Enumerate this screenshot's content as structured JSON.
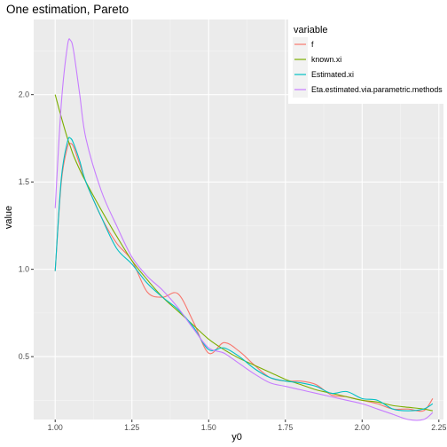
{
  "chart_data": {
    "type": "line",
    "title": "One estimation, Pareto",
    "xlabel": "y0",
    "ylabel": "value",
    "xlim": [
      0.93,
      2.265
    ],
    "ylim": [
      0.14,
      2.43
    ],
    "x_ticks": [
      1.0,
      1.25,
      1.5,
      1.75,
      2.0,
      2.25
    ],
    "x_tick_labels": [
      "1.00",
      "1.25",
      "1.50",
      "1.75",
      "2.00",
      "2.25"
    ],
    "y_ticks": [
      0.5,
      1.0,
      1.5,
      2.0
    ],
    "y_tick_labels": [
      "0.5",
      "1.0",
      "1.5",
      "2.0"
    ],
    "grid": true,
    "legend": {
      "title": "variable",
      "position": "right"
    },
    "x": [
      1.0,
      1.02,
      1.04,
      1.05,
      1.06,
      1.08,
      1.1,
      1.15,
      1.2,
      1.25,
      1.3,
      1.35,
      1.4,
      1.45,
      1.5,
      1.55,
      1.6,
      1.65,
      1.7,
      1.75,
      1.8,
      1.85,
      1.9,
      1.95,
      2.0,
      2.05,
      2.1,
      2.15,
      2.2,
      2.23
    ],
    "series": [
      {
        "name": "f",
        "color": "#F8766D",
        "values": [
          0.99,
          1.5,
          1.7,
          1.72,
          1.7,
          1.6,
          1.5,
          1.3,
          1.15,
          1.05,
          0.87,
          0.84,
          0.86,
          0.7,
          0.52,
          0.58,
          0.53,
          0.45,
          0.38,
          0.36,
          0.36,
          0.34,
          0.28,
          0.27,
          0.25,
          0.23,
          0.2,
          0.2,
          0.19,
          0.26
        ]
      },
      {
        "name": "known.xi",
        "color": "#7CAE00",
        "values": [
          2.0,
          1.87,
          1.75,
          1.7,
          1.65,
          1.57,
          1.5,
          1.34,
          1.19,
          1.05,
          0.94,
          0.84,
          0.76,
          0.68,
          0.6,
          0.54,
          0.49,
          0.45,
          0.41,
          0.37,
          0.34,
          0.31,
          0.29,
          0.27,
          0.25,
          0.24,
          0.22,
          0.21,
          0.2,
          0.19
        ]
      },
      {
        "name": "Estimated.xi",
        "color": "#00BFC4",
        "values": [
          0.99,
          1.52,
          1.73,
          1.75,
          1.72,
          1.62,
          1.5,
          1.3,
          1.12,
          1.03,
          0.92,
          0.84,
          0.77,
          0.67,
          0.54,
          0.55,
          0.5,
          0.43,
          0.38,
          0.36,
          0.35,
          0.33,
          0.29,
          0.3,
          0.26,
          0.25,
          0.2,
          0.19,
          0.2,
          0.23
        ]
      },
      {
        "name": "Eta.estimated.via.parametric.methods",
        "color": "#C77CFF",
        "values": [
          1.35,
          1.95,
          2.28,
          2.31,
          2.25,
          2.0,
          1.75,
          1.45,
          1.25,
          1.07,
          0.96,
          0.88,
          0.78,
          0.66,
          0.55,
          0.52,
          0.46,
          0.4,
          0.35,
          0.33,
          0.31,
          0.29,
          0.27,
          0.25,
          0.23,
          0.2,
          0.17,
          0.14,
          0.14,
          0.18
        ]
      }
    ]
  }
}
